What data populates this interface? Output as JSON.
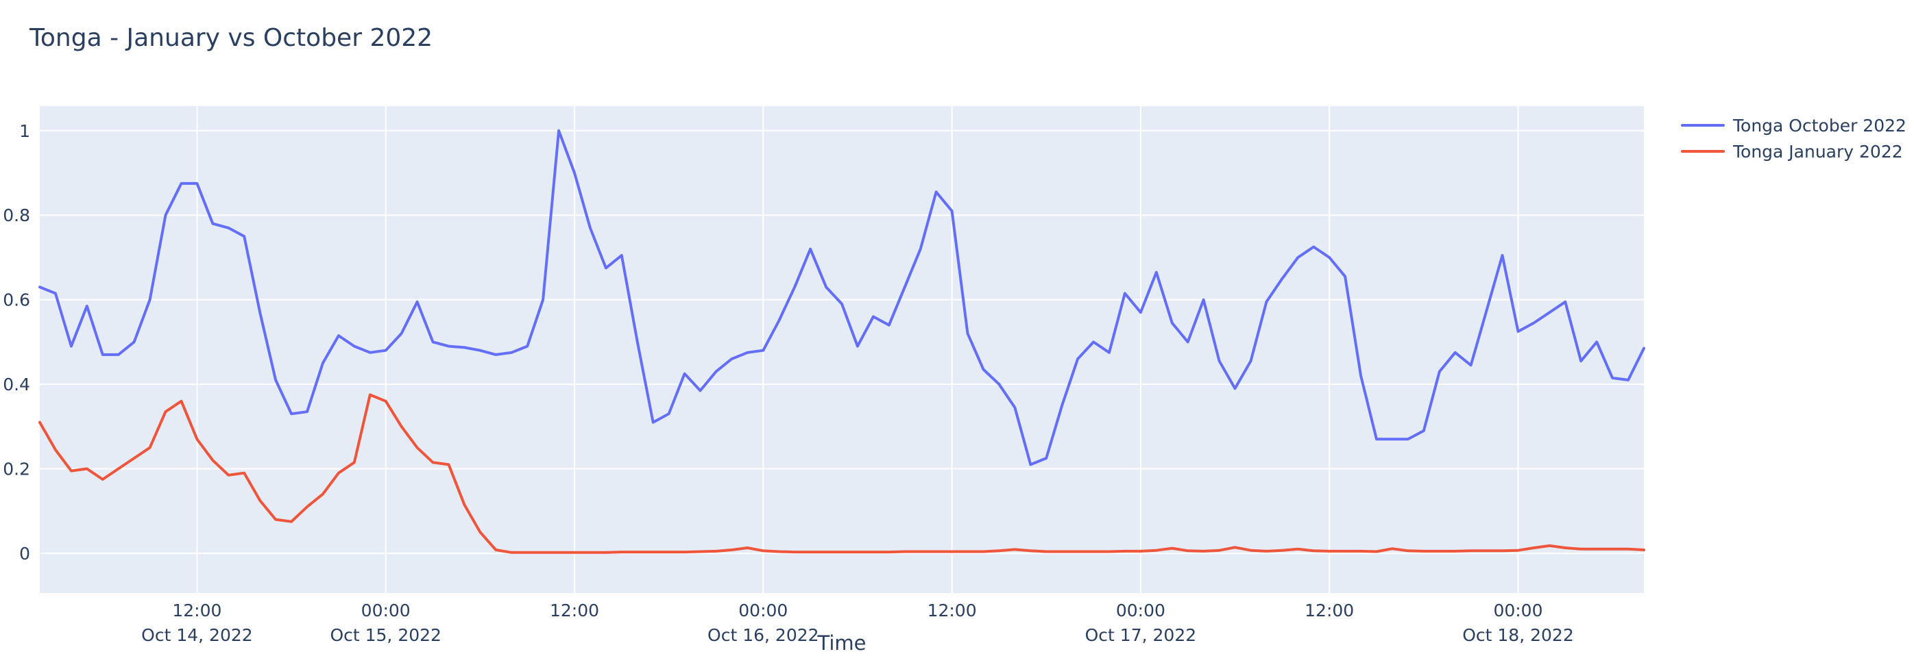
{
  "page": {
    "title": "Tonga - January vs October 2022"
  },
  "chart_data": {
    "type": "line",
    "title": "Tonga - January vs October 2022",
    "xlabel": "Time",
    "ylabel": "",
    "grid": true,
    "plot_bg": "#e5ecf6",
    "grid_color": "#ffffff",
    "text_color": "#2a3f5f",
    "legend_position": "top-right",
    "ylim": [
      -0.094,
      1.058
    ],
    "y_axis": {
      "range": [
        -0.094,
        1.058
      ],
      "ticks": [
        {
          "v": 0,
          "label": "0"
        },
        {
          "v": 0.2,
          "label": "0.2"
        },
        {
          "v": 0.4,
          "label": "0.4"
        },
        {
          "v": 0.6,
          "label": "0.6"
        },
        {
          "v": 0.8,
          "label": "0.8"
        },
        {
          "v": 1,
          "label": "1"
        }
      ]
    },
    "x_axis": {
      "start": "2022-10-14T02:00",
      "end": "2022-10-18T08:00",
      "ticks": [
        {
          "t": "2022-10-14T12:00",
          "line1": "12:00",
          "line2": "Oct 14, 2022"
        },
        {
          "t": "2022-10-15T00:00",
          "line1": "00:00",
          "line2": "Oct 15, 2022"
        },
        {
          "t": "2022-10-15T12:00",
          "line1": "12:00",
          "line2": ""
        },
        {
          "t": "2022-10-16T00:00",
          "line1": "00:00",
          "line2": "Oct 16, 2022"
        },
        {
          "t": "2022-10-16T12:00",
          "line1": "12:00",
          "line2": ""
        },
        {
          "t": "2022-10-17T00:00",
          "line1": "00:00",
          "line2": "Oct 17, 2022"
        },
        {
          "t": "2022-10-17T12:00",
          "line1": "12:00",
          "line2": ""
        },
        {
          "t": "2022-10-18T00:00",
          "line1": "00:00",
          "line2": "Oct 18, 2022"
        }
      ]
    },
    "x": [
      "2022-10-14T02:00",
      "2022-10-14T03:00",
      "2022-10-14T04:00",
      "2022-10-14T05:00",
      "2022-10-14T06:00",
      "2022-10-14T07:00",
      "2022-10-14T08:00",
      "2022-10-14T09:00",
      "2022-10-14T10:00",
      "2022-10-14T11:00",
      "2022-10-14T12:00",
      "2022-10-14T13:00",
      "2022-10-14T14:00",
      "2022-10-14T15:00",
      "2022-10-14T16:00",
      "2022-10-14T17:00",
      "2022-10-14T18:00",
      "2022-10-14T19:00",
      "2022-10-14T20:00",
      "2022-10-14T21:00",
      "2022-10-14T22:00",
      "2022-10-14T23:00",
      "2022-10-15T00:00",
      "2022-10-15T01:00",
      "2022-10-15T02:00",
      "2022-10-15T03:00",
      "2022-10-15T04:00",
      "2022-10-15T05:00",
      "2022-10-15T06:00",
      "2022-10-15T07:00",
      "2022-10-15T08:00",
      "2022-10-15T09:00",
      "2022-10-15T10:00",
      "2022-10-15T11:00",
      "2022-10-15T12:00",
      "2022-10-15T13:00",
      "2022-10-15T14:00",
      "2022-10-15T15:00",
      "2022-10-15T16:00",
      "2022-10-15T17:00",
      "2022-10-15T18:00",
      "2022-10-15T19:00",
      "2022-10-15T20:00",
      "2022-10-15T21:00",
      "2022-10-15T22:00",
      "2022-10-15T23:00",
      "2022-10-16T00:00",
      "2022-10-16T01:00",
      "2022-10-16T02:00",
      "2022-10-16T03:00",
      "2022-10-16T04:00",
      "2022-10-16T05:00",
      "2022-10-16T06:00",
      "2022-10-16T07:00",
      "2022-10-16T08:00",
      "2022-10-16T09:00",
      "2022-10-16T10:00",
      "2022-10-16T11:00",
      "2022-10-16T12:00",
      "2022-10-16T13:00",
      "2022-10-16T14:00",
      "2022-10-16T15:00",
      "2022-10-16T16:00",
      "2022-10-16T17:00",
      "2022-10-16T18:00",
      "2022-10-16T19:00",
      "2022-10-16T20:00",
      "2022-10-16T21:00",
      "2022-10-16T22:00",
      "2022-10-16T23:00",
      "2022-10-17T00:00",
      "2022-10-17T01:00",
      "2022-10-17T02:00",
      "2022-10-17T03:00",
      "2022-10-17T04:00",
      "2022-10-17T05:00",
      "2022-10-17T06:00",
      "2022-10-17T07:00",
      "2022-10-17T08:00",
      "2022-10-17T09:00",
      "2022-10-17T10:00",
      "2022-10-17T11:00",
      "2022-10-17T12:00",
      "2022-10-17T13:00",
      "2022-10-17T14:00",
      "2022-10-17T15:00",
      "2022-10-17T16:00",
      "2022-10-17T17:00",
      "2022-10-17T18:00",
      "2022-10-17T19:00",
      "2022-10-17T20:00",
      "2022-10-17T21:00",
      "2022-10-17T22:00",
      "2022-10-17T23:00",
      "2022-10-18T00:00",
      "2022-10-18T01:00",
      "2022-10-18T02:00",
      "2022-10-18T03:00",
      "2022-10-18T04:00",
      "2022-10-18T05:00",
      "2022-10-18T06:00",
      "2022-10-18T07:00",
      "2022-10-18T08:00"
    ],
    "series": [
      {
        "name": "Tonga October 2022",
        "color": "#636efa",
        "values": [
          0.63,
          0.615,
          0.49,
          0.585,
          0.47,
          0.47,
          0.5,
          0.6,
          0.8,
          0.875,
          0.875,
          0.78,
          0.77,
          0.75,
          0.57,
          0.41,
          0.33,
          0.335,
          0.45,
          0.515,
          0.49,
          0.475,
          0.48,
          0.52,
          0.595,
          0.5,
          0.49,
          0.487,
          0.48,
          0.47,
          0.475,
          0.49,
          0.6,
          1.0,
          0.9,
          0.77,
          0.675,
          0.705,
          0.5,
          0.31,
          0.33,
          0.425,
          0.385,
          0.43,
          0.46,
          0.475,
          0.48,
          0.55,
          0.63,
          0.72,
          0.63,
          0.59,
          0.49,
          0.56,
          0.54,
          0.63,
          0.72,
          0.855,
          0.81,
          0.52,
          0.435,
          0.4,
          0.345,
          0.21,
          0.225,
          0.35,
          0.46,
          0.5,
          0.475,
          0.615,
          0.57,
          0.665,
          0.545,
          0.5,
          0.6,
          0.455,
          0.39,
          0.455,
          0.595,
          0.65,
          0.7,
          0.725,
          0.7,
          0.655,
          0.42,
          0.27,
          0.27,
          0.27,
          0.29,
          0.43,
          0.475,
          0.445,
          0.575,
          0.705,
          0.525,
          0.545,
          0.57,
          0.595,
          0.455,
          0.5,
          0.415,
          0.41,
          0.485
        ]
      },
      {
        "name": "Tonga January 2022",
        "color": "#ef553b",
        "values": [
          0.31,
          0.245,
          0.195,
          0.2,
          0.175,
          0.2,
          0.225,
          0.25,
          0.335,
          0.36,
          0.27,
          0.22,
          0.185,
          0.19,
          0.125,
          0.08,
          0.075,
          0.11,
          0.14,
          0.19,
          0.215,
          0.375,
          0.36,
          0.3,
          0.25,
          0.215,
          0.21,
          0.115,
          0.05,
          0.008,
          0.002,
          0.002,
          0.002,
          0.002,
          0.002,
          0.002,
          0.002,
          0.003,
          0.003,
          0.003,
          0.003,
          0.003,
          0.004,
          0.005,
          0.008,
          0.013,
          0.006,
          0.004,
          0.003,
          0.003,
          0.003,
          0.003,
          0.003,
          0.003,
          0.003,
          0.004,
          0.004,
          0.004,
          0.004,
          0.004,
          0.004,
          0.006,
          0.009,
          0.006,
          0.004,
          0.004,
          0.004,
          0.004,
          0.004,
          0.005,
          0.005,
          0.007,
          0.012,
          0.006,
          0.005,
          0.007,
          0.014,
          0.007,
          0.005,
          0.007,
          0.01,
          0.006,
          0.005,
          0.005,
          0.005,
          0.004,
          0.011,
          0.006,
          0.005,
          0.005,
          0.005,
          0.006,
          0.006,
          0.006,
          0.007,
          0.013,
          0.018,
          0.013,
          0.01,
          0.01,
          0.01,
          0.01,
          0.008
        ]
      }
    ]
  }
}
